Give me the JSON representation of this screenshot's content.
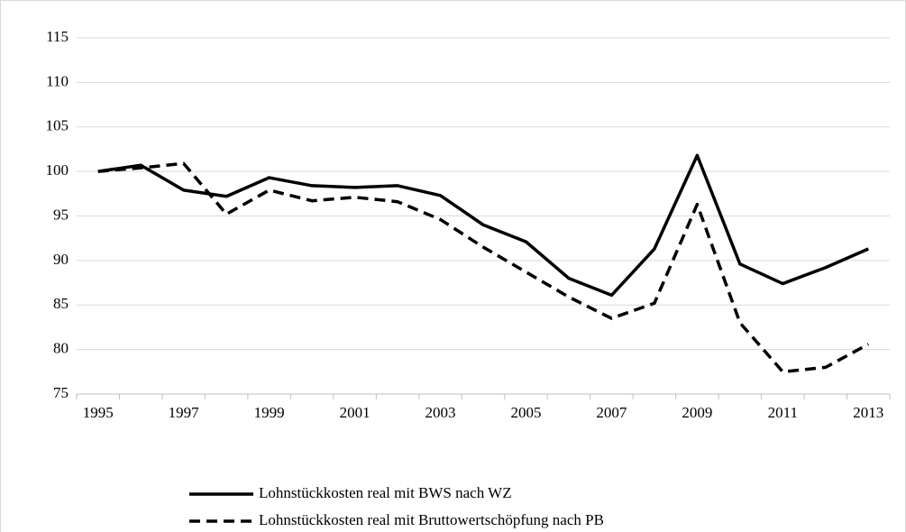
{
  "chart_data": {
    "type": "line",
    "categories": [
      "1995",
      null,
      "1997",
      null,
      "1999",
      null,
      "2001",
      null,
      "2003",
      null,
      "2005",
      null,
      "2007",
      null,
      "2009",
      null,
      "2011",
      null,
      "2013"
    ],
    "series": [
      {
        "name": "Lohnstückkosten real mit BWS nach WZ",
        "color": "#000000",
        "line_style": "solid",
        "values": [
          100,
          100.7,
          97.9,
          97.2,
          99.3,
          98.4,
          98.2,
          98.4,
          97.3,
          94.0,
          92.1,
          88.0,
          86.1,
          91.3,
          101.8,
          89.6,
          87.4,
          89.2,
          91.3
        ]
      },
      {
        "name": "Lohnstückkosten real mit Bruttowertschöpfung nach PB",
        "color": "#000000",
        "line_style": "dashed",
        "values": [
          100,
          100.4,
          100.9,
          95.2,
          97.9,
          96.7,
          97.1,
          96.6,
          94.6,
          91.5,
          88.7,
          85.9,
          83.5,
          85.2,
          96.3,
          83.0,
          77.5,
          78.0,
          80.6
        ]
      }
    ],
    "ylim": [
      75,
      115
    ],
    "yticks": [
      75,
      80,
      85,
      90,
      95,
      100,
      105,
      110,
      115
    ],
    "grid": true
  }
}
